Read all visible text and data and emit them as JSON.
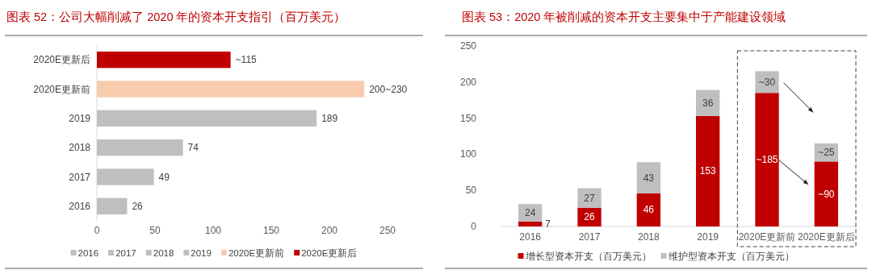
{
  "chart_data": [
    {
      "type": "bar",
      "orientation": "horizontal",
      "title": "图表 52：公司大幅削减了 2020 年的资本开支指引（百万美元）",
      "categories": [
        "2020E更新后",
        "2020E更新前",
        "2019",
        "2018",
        "2017",
        "2016"
      ],
      "xlim": [
        0,
        250
      ],
      "xticks": [
        0,
        50,
        100,
        150,
        200,
        250
      ],
      "legend": "bottom",
      "series": [
        {
          "name": "2016",
          "color": "#bfbfbf",
          "values": [
            null,
            null,
            null,
            null,
            null,
            26
          ],
          "value_labels": [
            null,
            null,
            null,
            null,
            null,
            "26"
          ]
        },
        {
          "name": "2017",
          "color": "#bfbfbf",
          "values": [
            null,
            null,
            null,
            null,
            49,
            null
          ],
          "value_labels": [
            null,
            null,
            null,
            null,
            "49",
            null
          ]
        },
        {
          "name": "2018",
          "color": "#bfbfbf",
          "values": [
            null,
            null,
            null,
            74,
            null,
            null
          ],
          "value_labels": [
            null,
            null,
            null,
            "74",
            null,
            null
          ]
        },
        {
          "name": "2019",
          "color": "#bfbfbf",
          "values": [
            null,
            null,
            189,
            null,
            null,
            null
          ],
          "value_labels": [
            null,
            null,
            "189",
            null,
            null,
            null
          ]
        },
        {
          "name": "2020E更新前",
          "color": "#f8cbad",
          "values": [
            null,
            230,
            null,
            null,
            null,
            null
          ],
          "value_labels": [
            null,
            "200~230",
            null,
            null,
            null,
            null
          ]
        },
        {
          "name": "2020E更新后",
          "color": "#c00000",
          "values": [
            115,
            null,
            null,
            null,
            null,
            null
          ],
          "value_labels": [
            "~115",
            null,
            null,
            null,
            null,
            null
          ]
        }
      ]
    },
    {
      "type": "bar",
      "stacked": true,
      "title": "图表 53：2020 年被削减的资本开支主要集中于产能建设领域",
      "categories": [
        "2016",
        "2017",
        "2018",
        "2019",
        "2020E更新前",
        "2020E更新后"
      ],
      "ylim": [
        0,
        250
      ],
      "yticks": [
        0,
        50,
        100,
        150,
        200,
        250
      ],
      "legend": "bottom",
      "series": [
        {
          "name": "增长型资本开支（百万美元）",
          "color": "#c00000",
          "values": [
            7,
            26,
            46,
            153,
            185,
            90
          ],
          "value_labels": [
            "7",
            "26",
            "46",
            "153",
            "~185",
            "~90"
          ]
        },
        {
          "name": "维护型资本开支（百万美元）",
          "color": "#bfbfbf",
          "values": [
            24,
            27,
            43,
            36,
            30,
            25
          ],
          "value_labels": [
            "24",
            "27",
            "43",
            "36",
            "~30",
            "~25"
          ]
        }
      ]
    }
  ]
}
